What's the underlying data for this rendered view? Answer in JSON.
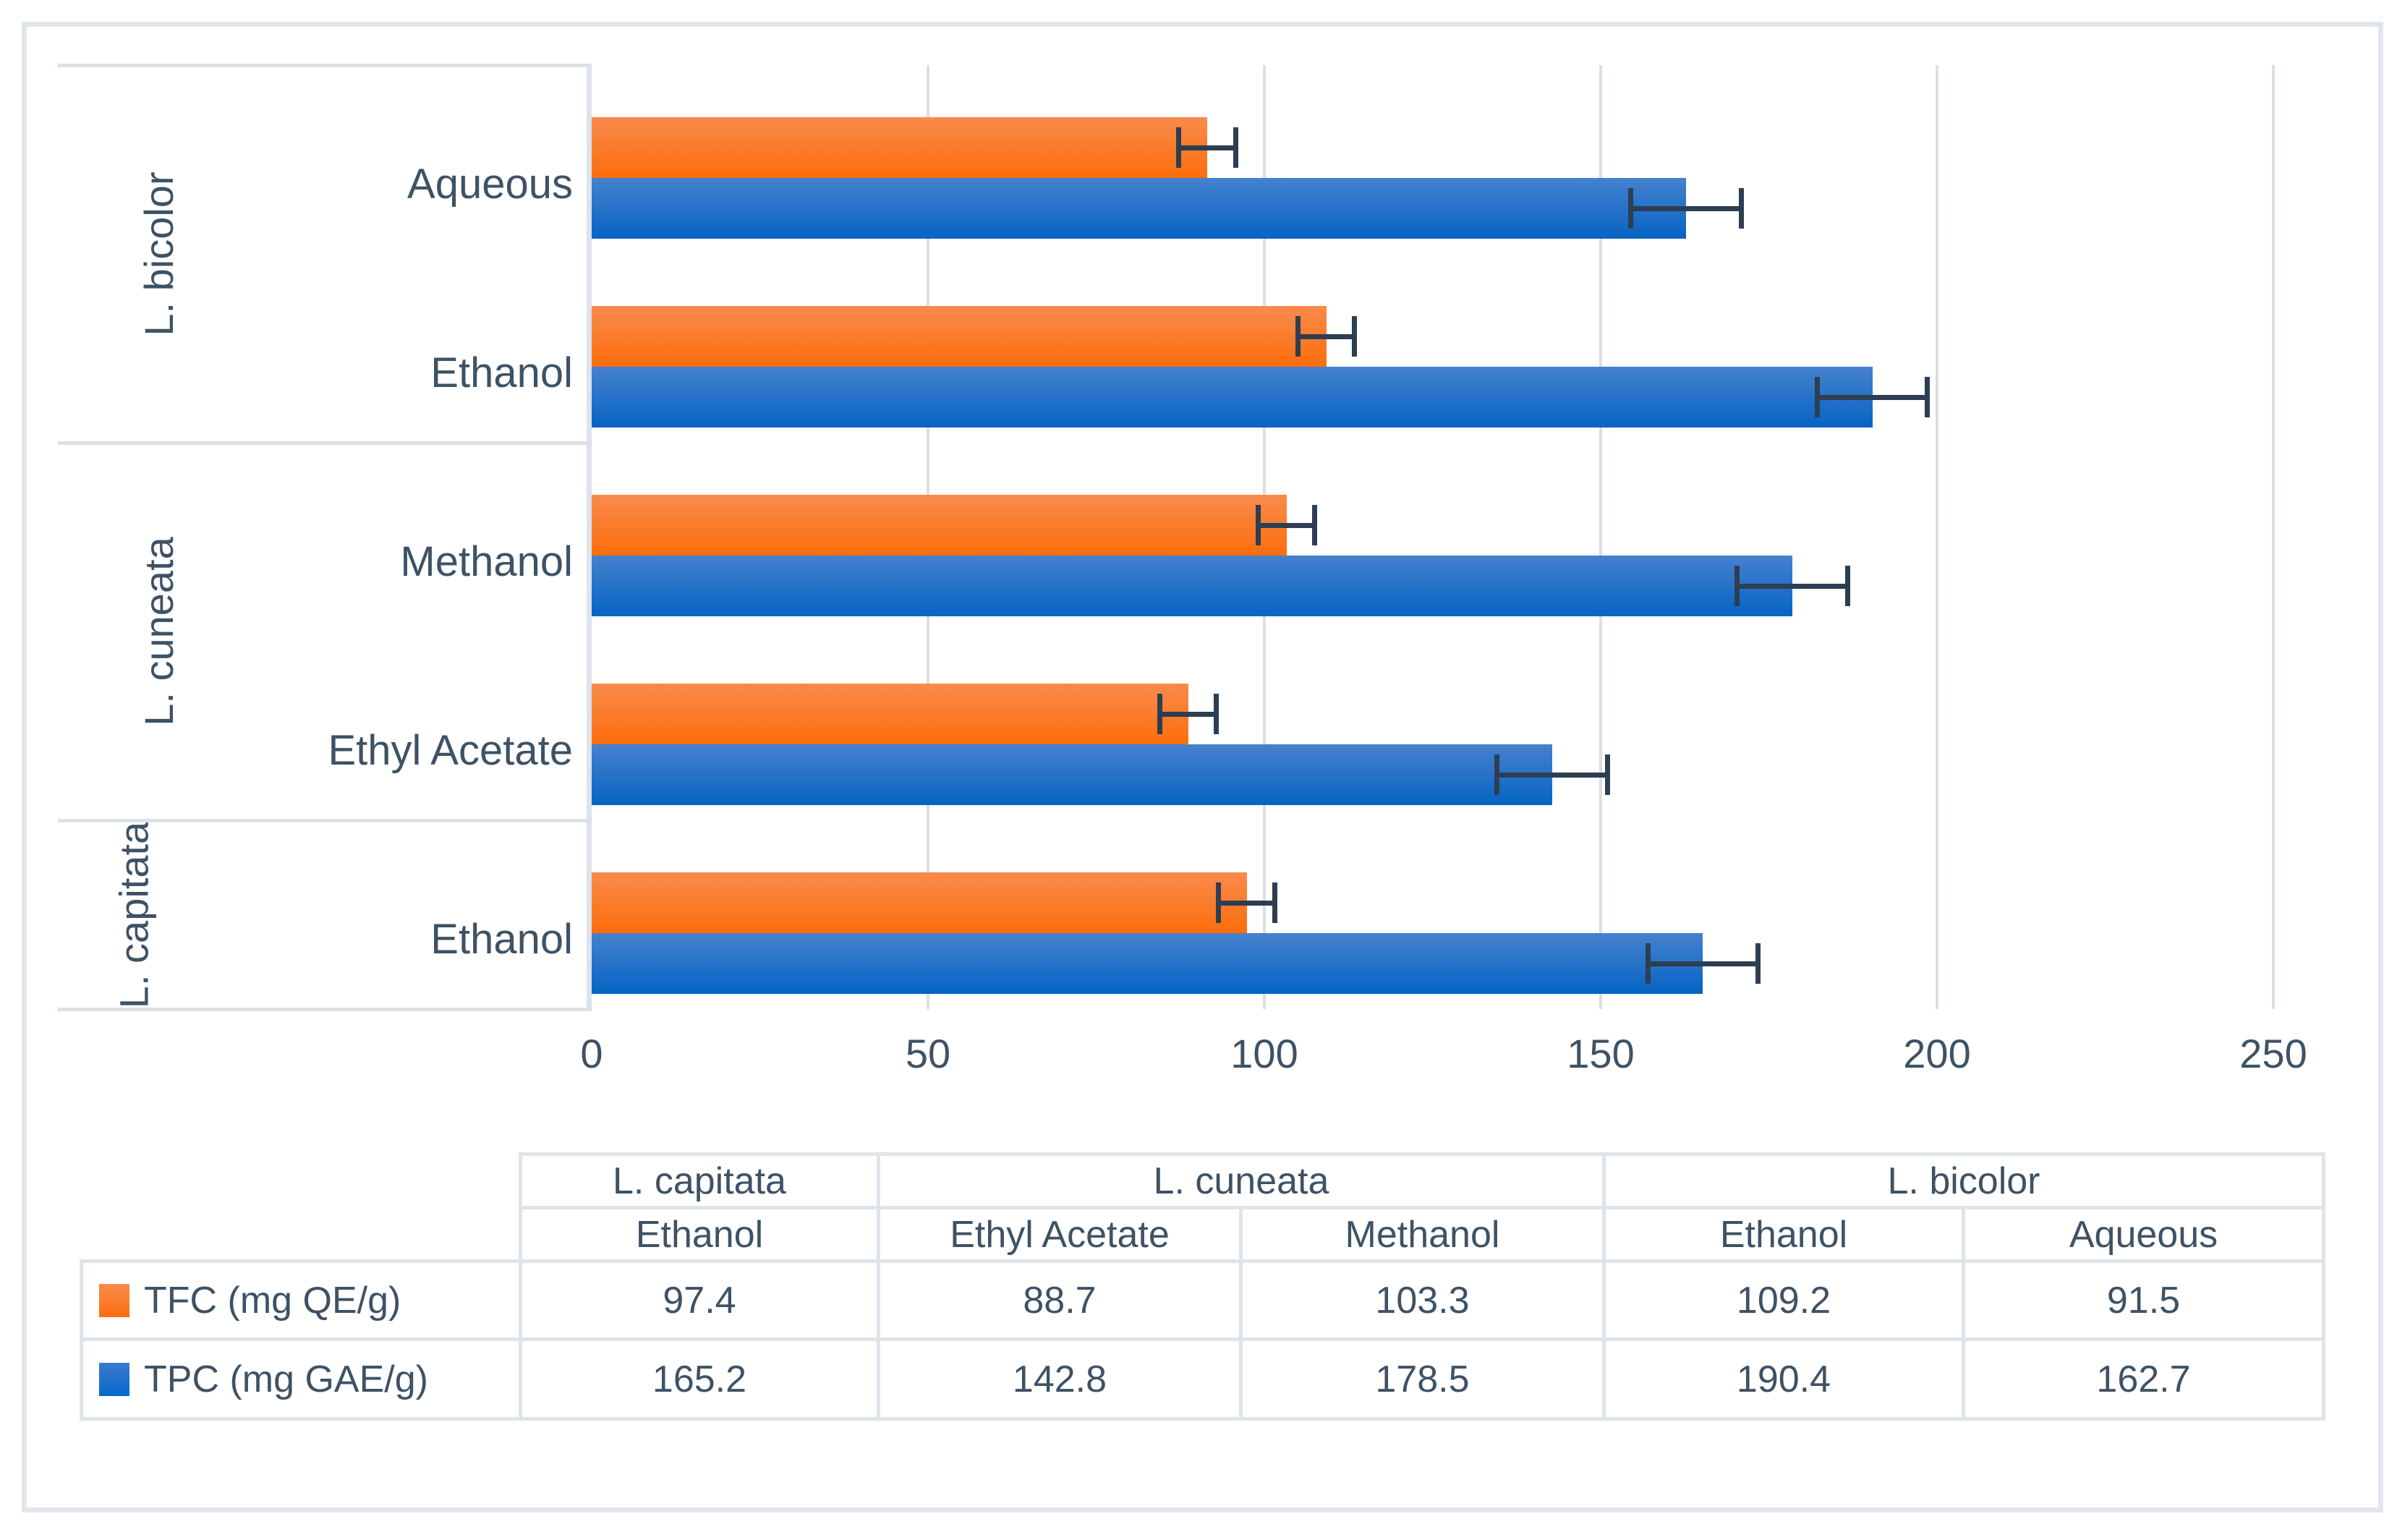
{
  "colors": {
    "text": "#3E5265",
    "tfc_top": "#F98B4D",
    "tfc_bottom": "#FC6D0C",
    "tpc_top": "#4681CE",
    "tpc_bottom": "#0564C3",
    "error_bar": "#2E3E52",
    "gridline": "#DADFE6",
    "table_border": "#DFE4EA",
    "frame_border": "#E1E6EC"
  },
  "chart_data": {
    "type": "bar",
    "orientation": "horizontal",
    "title": "",
    "xlabel": "",
    "ylabel": "",
    "xlim": [
      0,
      250
    ],
    "xticks": [
      "0",
      "50",
      "100",
      "150",
      "200",
      "250"
    ],
    "xtick_values": [
      0,
      50,
      100,
      150,
      200,
      250
    ],
    "grid": "vertical",
    "series_names": [
      "TFC (mg QE/g)",
      "TPC (mg GAE/g)"
    ],
    "rows_top_to_bottom": [
      {
        "group": "L. bicolor",
        "solvent": "Aqueous",
        "tfc": 91.5,
        "tfc_err": 4.2,
        "tpc": 162.7,
        "tpc_err": 8.2
      },
      {
        "group": "L. bicolor",
        "solvent": "Ethanol",
        "tfc": 109.2,
        "tfc_err": 4.2,
        "tpc": 190.4,
        "tpc_err": 8.2
      },
      {
        "group": "L. cuneata",
        "solvent": "Methanol",
        "tfc": 103.3,
        "tfc_err": 4.2,
        "tpc": 178.5,
        "tpc_err": 8.2
      },
      {
        "group": "L. cuneata",
        "solvent": "Ethyl Acetate",
        "tfc": 88.7,
        "tfc_err": 4.2,
        "tpc": 142.8,
        "tpc_err": 8.2
      },
      {
        "group": "L. capitata",
        "solvent": "Ethanol",
        "tfc": 97.4,
        "tfc_err": 4.2,
        "tpc": 165.2,
        "tpc_err": 8.2
      }
    ],
    "legend_position": "bottom-table-left"
  },
  "table": {
    "col_groups": [
      {
        "label": "L. capitata",
        "span": 1
      },
      {
        "label": "L. cuneata",
        "span": 2
      },
      {
        "label": "L. bicolor",
        "span": 2
      }
    ],
    "col_headers": [
      "Ethanol",
      "Ethyl Acetate",
      "Methanol",
      "Ethanol",
      "Aqueous"
    ],
    "rows": [
      {
        "legend": "TFC (mg QE/g)",
        "swatch": "tfc",
        "values": [
          "97.4",
          "88.7",
          "103.3",
          "109.2",
          "91.5"
        ]
      },
      {
        "legend": "TPC (mg GAE/g)",
        "swatch": "tpc",
        "values": [
          "165.2",
          "142.8",
          "178.5",
          "190.4",
          "162.7"
        ]
      }
    ]
  }
}
